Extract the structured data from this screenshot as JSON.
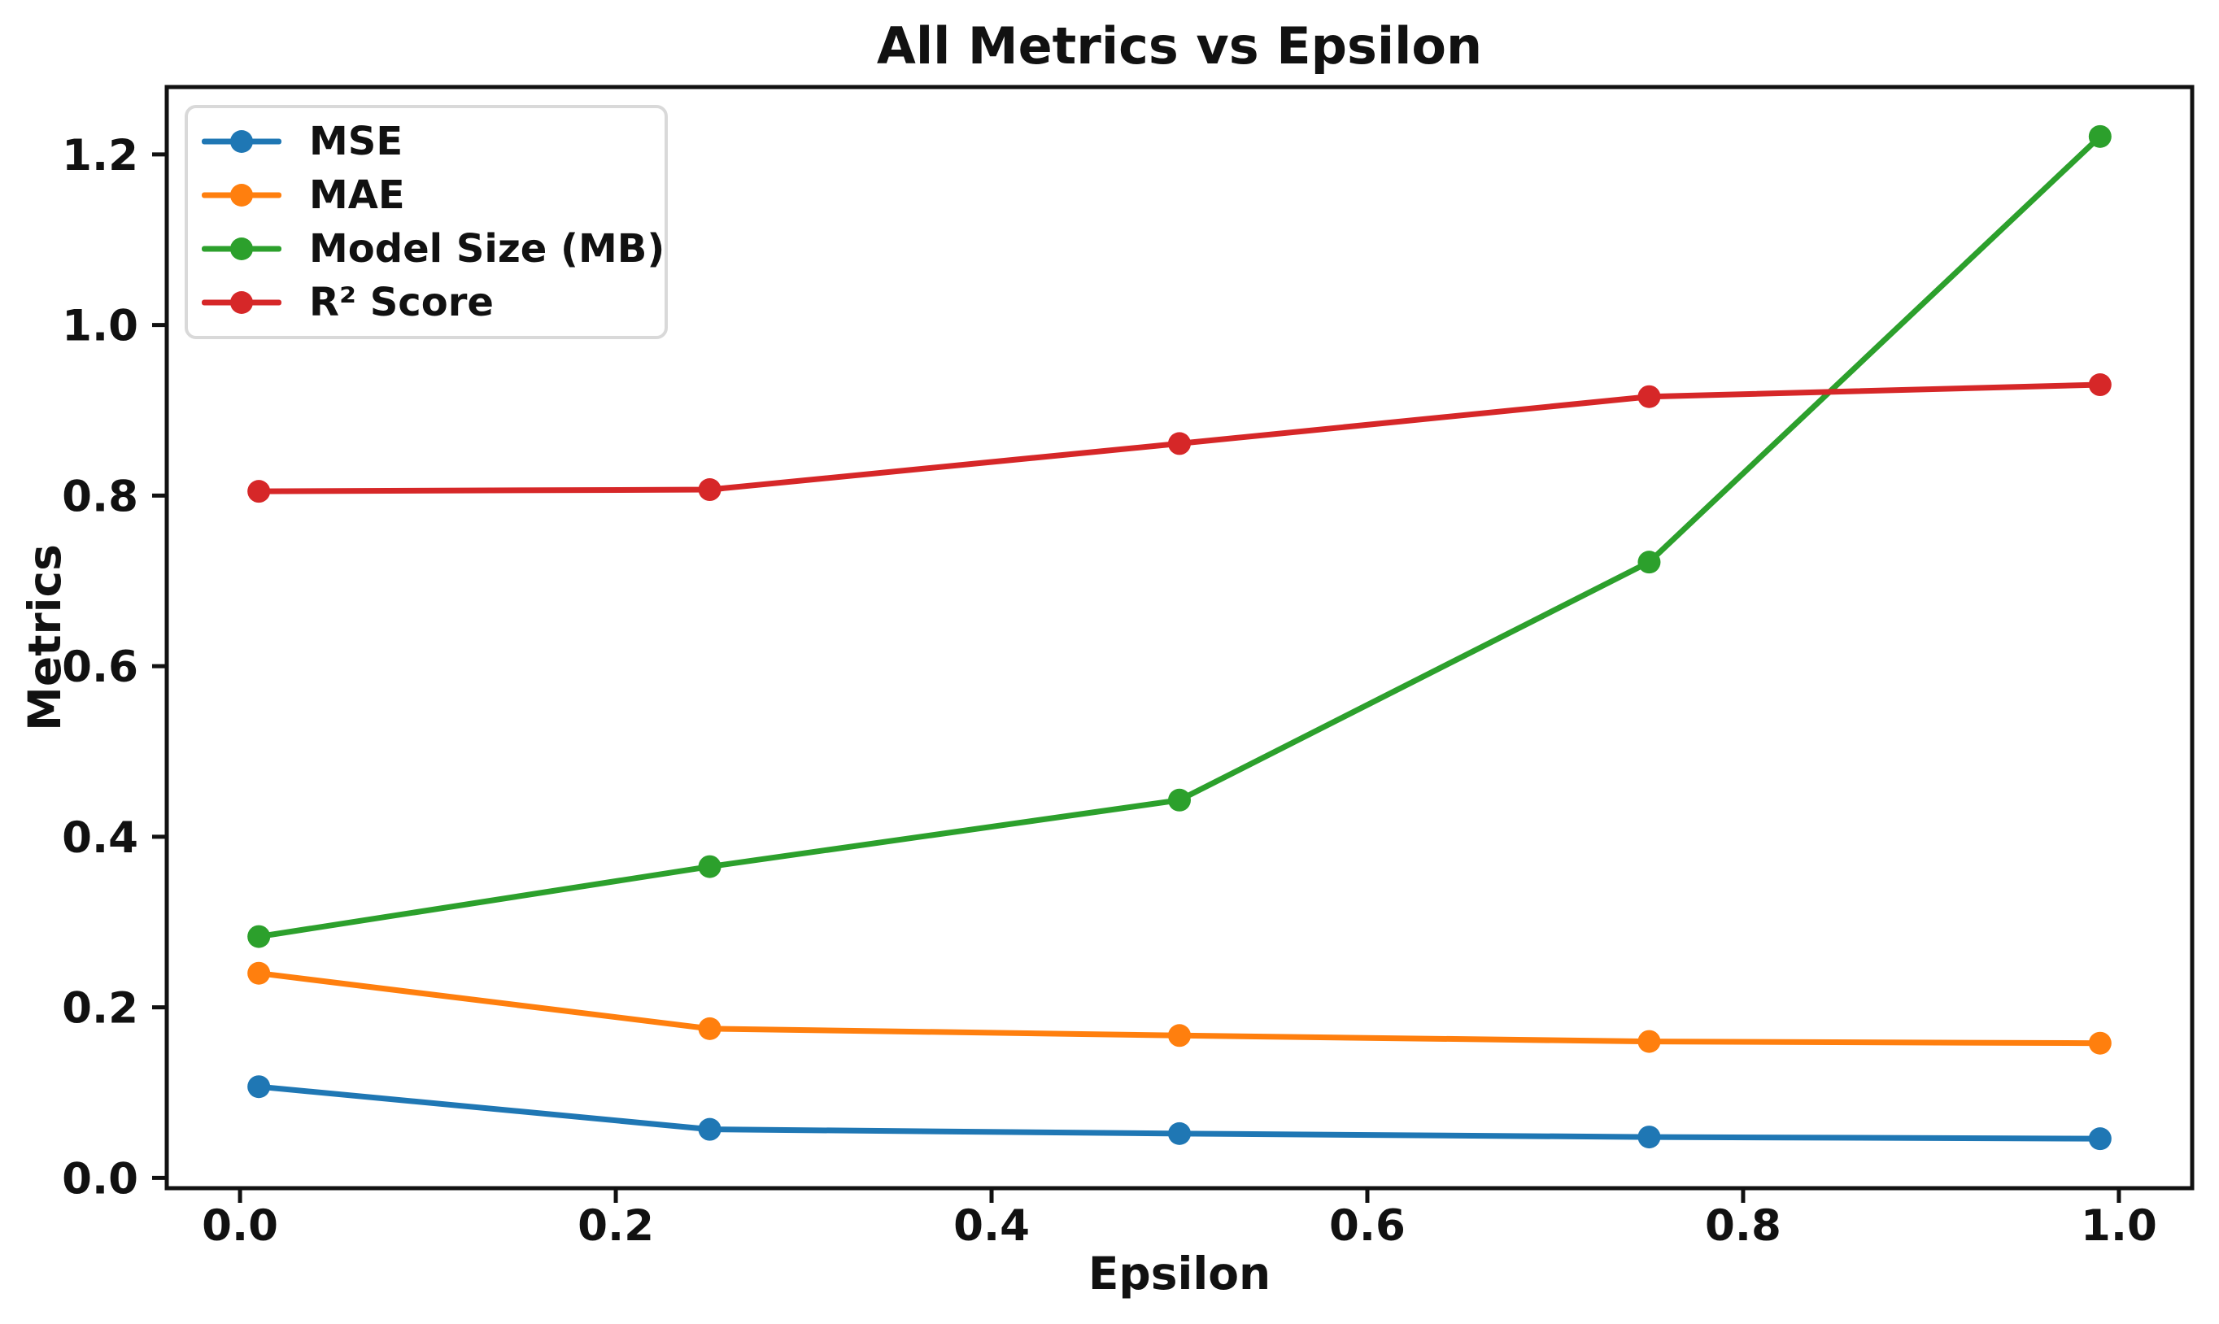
{
  "figure": {
    "title": "All Metrics vs Epsilon",
    "xlabel": "Epsilon",
    "ylabel": "Metrics"
  },
  "chart_data": {
    "type": "line",
    "title": "All Metrics vs Epsilon",
    "xlabel": "Epsilon",
    "ylabel": "Metrics",
    "x": [
      0.01,
      0.25,
      0.5,
      0.75,
      0.99
    ],
    "series": [
      {
        "name": "MSE",
        "color": "#1f77b4",
        "values": [
          0.107,
          0.057,
          0.052,
          0.048,
          0.046
        ]
      },
      {
        "name": "MAE",
        "color": "#ff7f0e",
        "values": [
          0.24,
          0.175,
          0.167,
          0.16,
          0.158
        ]
      },
      {
        "name": "Model Size (MB)",
        "color": "#2ca02c",
        "values": [
          0.283,
          0.365,
          0.443,
          0.722,
          1.221
        ]
      },
      {
        "name": "R² Score",
        "color": "#d62728",
        "values": [
          0.805,
          0.807,
          0.861,
          0.916,
          0.93
        ]
      }
    ],
    "xlim": [
      -0.039,
      1.039
    ],
    "ylim": [
      -0.012,
      1.279
    ],
    "xticks": {
      "values": [
        0.0,
        0.2,
        0.4,
        0.6,
        0.8,
        1.0
      ],
      "labels": [
        "0.0",
        "0.2",
        "0.4",
        "0.6",
        "0.8",
        "1.0"
      ]
    },
    "yticks": {
      "values": [
        0.0,
        0.2,
        0.4,
        0.6,
        0.8,
        1.0,
        1.2
      ],
      "labels": [
        "0.0",
        "0.2",
        "0.4",
        "0.6",
        "0.8",
        "1.0",
        "1.2"
      ]
    },
    "grid": false,
    "legend_position": "upper left",
    "marker": "o",
    "axis_color": "#111111"
  }
}
